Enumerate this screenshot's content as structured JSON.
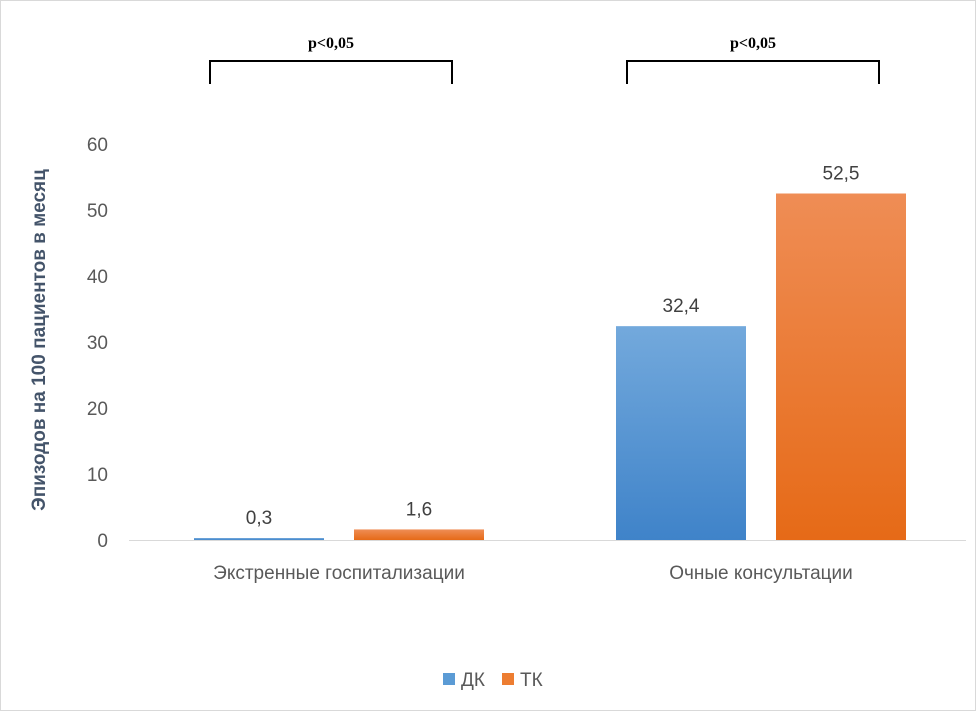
{
  "chart_data": {
    "type": "bar",
    "title": "",
    "xlabel": "",
    "ylabel": "Эпизодов на 100 пациентов в месяц",
    "categories": [
      "Экстренные госпитализации",
      "Очные консультации"
    ],
    "series": [
      {
        "name": "ДК",
        "values": [
          0.3,
          32.4
        ],
        "labels": [
          "0,3",
          "32,4"
        ],
        "color": "#5b9bd5"
      },
      {
        "name": "ТК",
        "values": [
          1.6,
          52.5
        ],
        "labels": [
          "1,6",
          "52,5"
        ],
        "color": "#ed7d31"
      }
    ],
    "ylim": [
      0,
      60
    ],
    "yticks": [
      0,
      10,
      20,
      30,
      40,
      50,
      60
    ],
    "grid": false,
    "legend": "bottom",
    "annotations": [
      {
        "text": "p<0,05",
        "category": "Экстренные госпитализации",
        "type": "bracket"
      },
      {
        "text": "p<0,05",
        "category": "Очные консультации",
        "type": "bracket"
      }
    ]
  }
}
